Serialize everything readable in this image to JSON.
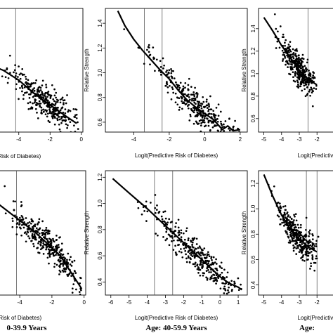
{
  "chart_data": [
    {
      "type": "scatter",
      "xlabel": "Logit(Predictive Risk of Diabetes)",
      "ylabel": "",
      "xlim": [
        -6.1,
        0.1
      ],
      "ylim": [
        0.55,
        1.55
      ],
      "xticks": [
        -4,
        -2,
        0
      ],
      "yticks": [],
      "vlines": [
        -4.2
      ],
      "caption": "",
      "series": [
        {
          "values": [
            [
              -6.0,
              1.1
            ],
            [
              -5.0,
              1.05
            ],
            [
              -4.0,
              0.97
            ],
            [
              -3.0,
              0.86
            ],
            [
              -2.0,
              0.77
            ],
            [
              -1.0,
              0.68
            ],
            [
              -0.3,
              0.62
            ]
          ]
        }
      ]
    },
    {
      "type": "scatter",
      "xlabel": "Logit(Predictive Risk of Diabetes)",
      "ylabel": "Relative Strength",
      "xlim": [
        -5.6,
        2.4
      ],
      "ylim": [
        0.52,
        1.52
      ],
      "xticks": [
        -4,
        -2,
        0,
        2
      ],
      "yticks": [
        0.6,
        0.8,
        1.0,
        1.2,
        1.4
      ],
      "vlines": [
        -3.4,
        -2.4
      ],
      "caption": "",
      "series": [
        {
          "values": [
            [
              -4.9,
              1.5
            ],
            [
              -4.5,
              1.38
            ],
            [
              -4.0,
              1.27
            ],
            [
              -3.5,
              1.18
            ],
            [
              -3.0,
              1.1
            ],
            [
              -2.5,
              1.02
            ],
            [
              -2.0,
              0.95
            ],
            [
              -1.5,
              0.86
            ],
            [
              -1.0,
              0.78
            ],
            [
              -0.5,
              0.72
            ],
            [
              0.0,
              0.67
            ],
            [
              0.5,
              0.62
            ],
            [
              1.0,
              0.54
            ],
            [
              1.3,
              0.57
            ],
            [
              1.6,
              0.53
            ],
            [
              2.0,
              0.54
            ]
          ]
        }
      ]
    },
    {
      "type": "scatter",
      "xlabel": "Logit(Predictive Risk",
      "ylabel": "Relative Strength",
      "xlim": [
        -5.3,
        -0.7
      ],
      "ylim": [
        0.48,
        1.58
      ],
      "xticks": [
        -5,
        -4,
        -3,
        -2
      ],
      "yticks": [
        0.6,
        0.8,
        1.0,
        1.2,
        1.4
      ],
      "vlines": [
        -2.5
      ],
      "caption": "",
      "series": [
        {
          "values": [
            [
              -5.0,
              1.5
            ],
            [
              -4.5,
              1.38
            ],
            [
              -4.0,
              1.25
            ],
            [
              -3.5,
              1.14
            ],
            [
              -3.0,
              1.03
            ],
            [
              -2.5,
              0.95
            ],
            [
              -2.0,
              0.9
            ]
          ]
        }
      ]
    },
    {
      "type": "scatter",
      "xlabel": "Logit(Predictive Risk of Diabetes)",
      "ylabel": "",
      "xlim": [
        -6.1,
        0.1
      ],
      "ylim": [
        0.3,
        1.3
      ],
      "xticks": [
        -4,
        -2,
        0
      ],
      "yticks": [],
      "vlines": [
        -4.2
      ],
      "caption": "0-39.9 Years",
      "series": [
        {
          "values": [
            [
              -6.0,
              1.1
            ],
            [
              -5.0,
              1.0
            ],
            [
              -4.0,
              0.9
            ],
            [
              -3.0,
              0.8
            ],
            [
              -2.0,
              0.68
            ],
            [
              -1.5,
              0.62
            ],
            [
              -1.0,
              0.52
            ],
            [
              -0.5,
              0.42
            ],
            [
              -0.15,
              0.35
            ]
          ]
        }
      ]
    },
    {
      "type": "scatter",
      "xlabel": "Logit(Predictive Risk of Diabetes)",
      "ylabel": "Relative Strength",
      "xlim": [
        -6.3,
        1.5
      ],
      "ylim": [
        0.3,
        1.25
      ],
      "xticks": [
        -6,
        -5,
        -4,
        -3,
        -2,
        -1,
        0,
        1
      ],
      "yticks": [
        0.4,
        0.6,
        0.8,
        1.0,
        1.2
      ],
      "vlines": [
        -3.6,
        -2.6
      ],
      "caption": "Age: 40-59.9 Years",
      "series": [
        {
          "values": [
            [
              -5.9,
              1.19
            ],
            [
              -5.0,
              1.08
            ],
            [
              -4.0,
              0.96
            ],
            [
              -3.0,
              0.83
            ],
            [
              -2.0,
              0.7
            ],
            [
              -1.0,
              0.57
            ],
            [
              0.0,
              0.44
            ],
            [
              0.5,
              0.39
            ],
            [
              1.0,
              0.36
            ],
            [
              1.2,
              0.34
            ]
          ]
        }
      ]
    },
    {
      "type": "scatter",
      "xlabel": "Logit(Predictive Risk",
      "ylabel": "Relative Strength",
      "xlim": [
        -5.3,
        -0.7
      ],
      "ylim": [
        0.32,
        1.3
      ],
      "xticks": [
        -5,
        -4,
        -3,
        -2
      ],
      "yticks": [
        0.4,
        0.6,
        0.8,
        1.0,
        1.2
      ],
      "vlines": [
        -2.6,
        -2.0
      ],
      "caption": "Age:",
      "series": [
        {
          "values": [
            [
              -5.0,
              1.27
            ],
            [
              -4.5,
              1.1
            ],
            [
              -4.0,
              0.95
            ],
            [
              -3.5,
              0.84
            ],
            [
              -3.0,
              0.76
            ],
            [
              -2.5,
              0.7
            ],
            [
              -2.0,
              0.66
            ]
          ]
        }
      ]
    }
  ]
}
